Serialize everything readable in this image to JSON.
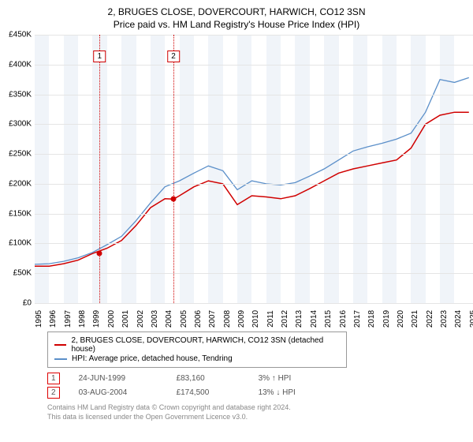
{
  "title": "2, BRUGES CLOSE, DOVERCOURT, HARWICH, CO12 3SN",
  "subtitle": "Price paid vs. HM Land Registry's House Price Index (HPI)",
  "chart": {
    "type": "line",
    "background_color": "#ffffff",
    "grid_band_colors": [
      "#f0f4f9",
      "#ffffff"
    ],
    "grid_line_color": "#e5e5e5",
    "ylim": [
      0,
      450000
    ],
    "ytick_step": 50000,
    "ytick_labels": [
      "£0",
      "£50K",
      "£100K",
      "£150K",
      "£200K",
      "£250K",
      "£300K",
      "£350K",
      "£400K",
      "£450K"
    ],
    "ytick_fontsize": 10,
    "xlim": [
      1995,
      2025.5
    ],
    "xticks": [
      1995,
      1996,
      1997,
      1998,
      1999,
      2000,
      2001,
      2002,
      2003,
      2004,
      2005,
      2006,
      2007,
      2008,
      2009,
      2010,
      2011,
      2012,
      2013,
      2014,
      2015,
      2016,
      2017,
      2018,
      2019,
      2020,
      2021,
      2022,
      2023,
      2024,
      2025
    ],
    "xtick_fontsize": 10,
    "title_fontsize": 12,
    "series": [
      {
        "name": "price_paid",
        "label": "2, BRUGES CLOSE, DOVERCOURT, HARWICH, CO12 3SN (detached house)",
        "color": "#d00000",
        "line_width": 1.5,
        "x": [
          1995,
          1996,
          1997,
          1998,
          1999,
          2000,
          2001,
          2002,
          2003,
          2004,
          2004.6,
          2005,
          2006,
          2007,
          2008,
          2009,
          2010,
          2011,
          2012,
          2013,
          2014,
          2015,
          2016,
          2017,
          2018,
          2019,
          2020,
          2021,
          2022,
          2023,
          2024,
          2025
        ],
        "y": [
          62000,
          62000,
          66000,
          72000,
          83160,
          92000,
          105000,
          130000,
          160000,
          175000,
          174500,
          180000,
          195000,
          205000,
          200000,
          165000,
          180000,
          178000,
          175000,
          180000,
          192000,
          205000,
          218000,
          225000,
          230000,
          235000,
          240000,
          260000,
          300000,
          315000,
          320000,
          320000
        ]
      },
      {
        "name": "hpi",
        "label": "HPI: Average price, detached house, Tendring",
        "color": "#5b8fc9",
        "line_width": 1.3,
        "x": [
          1995,
          1996,
          1997,
          1998,
          1999,
          2000,
          2001,
          2002,
          2003,
          2004,
          2005,
          2006,
          2007,
          2008,
          2009,
          2010,
          2011,
          2012,
          2013,
          2014,
          2015,
          2016,
          2017,
          2018,
          2019,
          2020,
          2021,
          2022,
          2023,
          2024,
          2025
        ],
        "y": [
          65000,
          66000,
          70000,
          76000,
          85000,
          98000,
          112000,
          138000,
          168000,
          195000,
          205000,
          218000,
          230000,
          222000,
          190000,
          205000,
          200000,
          198000,
          202000,
          213000,
          225000,
          240000,
          255000,
          262000,
          268000,
          275000,
          285000,
          320000,
          375000,
          370000,
          378000
        ]
      }
    ],
    "event_lines": [
      {
        "idx": "1",
        "x": 1999.48,
        "color": "#d00000",
        "style": "dotted",
        "label_y_offset": 20
      },
      {
        "idx": "2",
        "x": 2004.59,
        "color": "#d00000",
        "style": "dotted",
        "label_y_offset": 20
      }
    ],
    "markers": [
      {
        "x": 1999.48,
        "y": 83160,
        "color": "#d00000",
        "size": 7
      },
      {
        "x": 2004.59,
        "y": 174500,
        "color": "#d00000",
        "size": 7
      }
    ]
  },
  "legend": {
    "border_color": "#999999",
    "fontsize": 10,
    "items": [
      {
        "color": "#d00000",
        "label": "2, BRUGES CLOSE, DOVERCOURT, HARWICH, CO12 3SN (detached house)"
      },
      {
        "color": "#5b8fc9",
        "label": "HPI: Average price, detached house, Tendring"
      }
    ]
  },
  "events_table": {
    "fontsize": 10,
    "rows": [
      {
        "idx": "1",
        "date": "24-JUN-1999",
        "price": "£83,160",
        "diff": "3% ↑ HPI"
      },
      {
        "idx": "2",
        "date": "03-AUG-2004",
        "price": "£174,500",
        "diff": "13% ↓ HPI"
      }
    ]
  },
  "license": {
    "line1": "Contains HM Land Registry data © Crown copyright and database right 2024.",
    "line2": "This data is licensed under the Open Government Licence v3.0.",
    "color": "#888888",
    "fontsize": 9
  }
}
